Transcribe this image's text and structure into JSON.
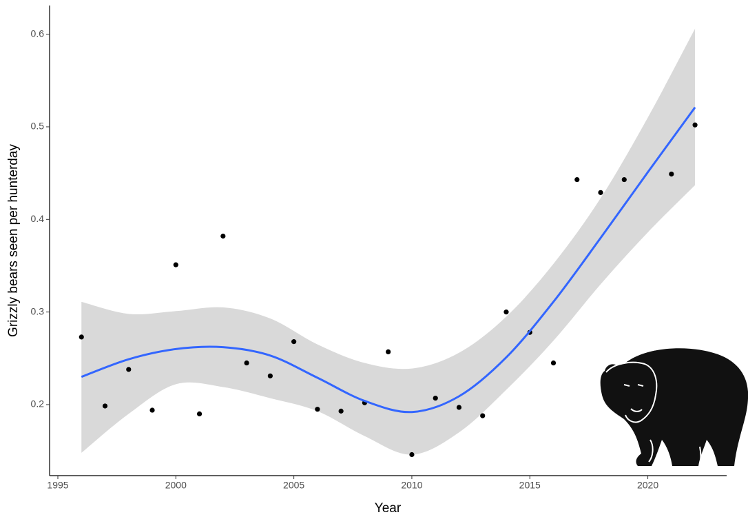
{
  "chart_data": {
    "type": "scatter",
    "xlabel": "Year",
    "ylabel": "Grizzly bears seen per hunterday",
    "xlim": [
      1994.65,
      2023.34
    ],
    "ylim": [
      0.1233,
      0.631
    ],
    "xticks": [
      1995,
      2000,
      2005,
      2010,
      2015,
      2020
    ],
    "yticks": [
      0.2,
      0.3,
      0.4,
      0.5,
      0.6
    ],
    "series": [
      {
        "color": "#000000",
        "x": [
          1996,
          1997,
          1998,
          1999,
          2000,
          2001,
          2002,
          2003,
          2004,
          2005,
          2006,
          2007,
          2008,
          2009,
          2010,
          2011,
          2012,
          2013,
          2014,
          2015,
          2016,
          2017,
          2018,
          2019,
          2021,
          2022
        ],
        "values": [
          0.273,
          0.1985,
          0.238,
          0.194,
          0.351,
          0.19,
          0.382,
          0.245,
          0.231,
          0.268,
          0.195,
          0.193,
          0.202,
          0.257,
          0.146,
          0.207,
          0.197,
          0.188,
          0.3,
          0.278,
          0.245,
          0.443,
          0.429,
          0.443,
          0.449,
          0.502
        ]
      }
    ],
    "smooth": {
      "color": "#3366ff",
      "band_color": "#d9d9d9",
      "x": [
        1996,
        1998,
        2000,
        2002,
        2004,
        2006,
        2008,
        2010,
        2012,
        2014,
        2016,
        2018,
        2020,
        2022
      ],
      "values": [
        0.23,
        0.249,
        0.26,
        0.262,
        0.253,
        0.229,
        0.204,
        0.192,
        0.209,
        0.251,
        0.311,
        0.38,
        0.451,
        0.521
      ],
      "upper": [
        0.311,
        0.298,
        0.301,
        0.305,
        0.293,
        0.265,
        0.245,
        0.239,
        0.256,
        0.295,
        0.352,
        0.423,
        0.51,
        0.606
      ],
      "lower": [
        0.148,
        0.19,
        0.222,
        0.219,
        0.207,
        0.193,
        0.166,
        0.146,
        0.17,
        0.216,
        0.269,
        0.33,
        0.386,
        0.437
      ]
    }
  }
}
